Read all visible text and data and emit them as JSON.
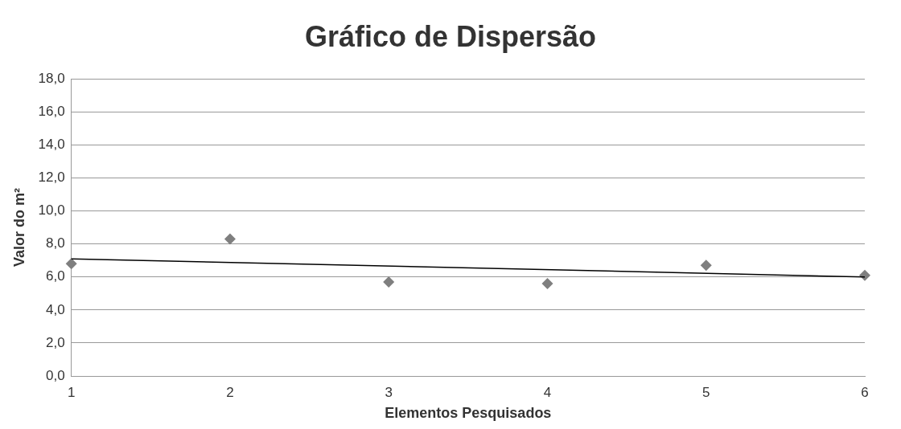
{
  "chart_data": {
    "type": "scatter",
    "title": "Gráfico de Dispersão",
    "xlabel": "Elementos Pesquisados",
    "ylabel": "Valor do m²",
    "x": [
      1,
      2,
      3,
      4,
      5,
      6
    ],
    "series": [
      {
        "color": "#7f7f7f",
        "values": [
          6.8,
          8.3,
          5.7,
          5.6,
          6.7,
          6.1
        ],
        "marker": "diamond"
      },
      {
        "type": "line",
        "color": "#000000",
        "x": [
          1,
          6
        ],
        "values": [
          7.1,
          6.0
        ],
        "marker": "none"
      }
    ],
    "xlim": [
      1,
      6
    ],
    "xticks": [
      1,
      2,
      3,
      4,
      5,
      6
    ],
    "ylim": [
      0,
      18
    ],
    "yticks": [
      {
        "value": 0,
        "label": "0,0"
      },
      {
        "value": 2,
        "label": "2,0"
      },
      {
        "value": 4,
        "label": "4,0"
      },
      {
        "value": 6,
        "label": "6,0"
      },
      {
        "value": 8,
        "label": "8,0"
      },
      {
        "value": 10,
        "label": "10,0"
      },
      {
        "value": 12,
        "label": "12,0"
      },
      {
        "value": 14,
        "label": "14,0"
      },
      {
        "value": 16,
        "label": "16,0"
      },
      {
        "value": 18,
        "label": "18,0"
      }
    ],
    "grid": "y",
    "legend": false
  }
}
